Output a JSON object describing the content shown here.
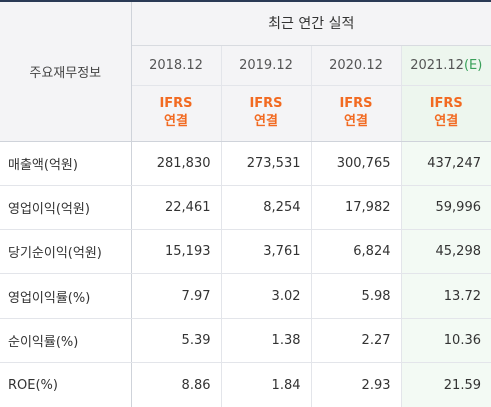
{
  "header": {
    "label": "주요재무정보",
    "group": "최근 연간 실적",
    "years": [
      {
        "year": "2018.12",
        "est": ""
      },
      {
        "year": "2019.12",
        "est": ""
      },
      {
        "year": "2020.12",
        "est": ""
      },
      {
        "year": "2021.12",
        "est": "(E)"
      }
    ],
    "std_top": "IFRS",
    "std_bottom": "연결"
  },
  "rows": [
    {
      "label": "매출액(억원)",
      "values": [
        "281,830",
        "273,531",
        "300,765",
        "437,247"
      ]
    },
    {
      "label": "영업이익(억원)",
      "values": [
        "22,461",
        "8,254",
        "17,982",
        "59,996"
      ]
    },
    {
      "label": "당기순이익(억원)",
      "values": [
        "15,193",
        "3,761",
        "6,824",
        "45,298"
      ]
    },
    {
      "label": "영업이익률(%)",
      "values": [
        "7.97",
        "3.02",
        "5.98",
        "13.72"
      ]
    },
    {
      "label": "순이익률(%)",
      "values": [
        "5.39",
        "1.38",
        "2.27",
        "10.36"
      ]
    },
    {
      "label": "ROE(%)",
      "values": [
        "8.86",
        "1.84",
        "2.93",
        "21.59"
      ]
    }
  ],
  "colors": {
    "accent_orange": "#f26a21",
    "estimate_green": "#3aa05a",
    "highlight_bg": "#edf6ee"
  }
}
